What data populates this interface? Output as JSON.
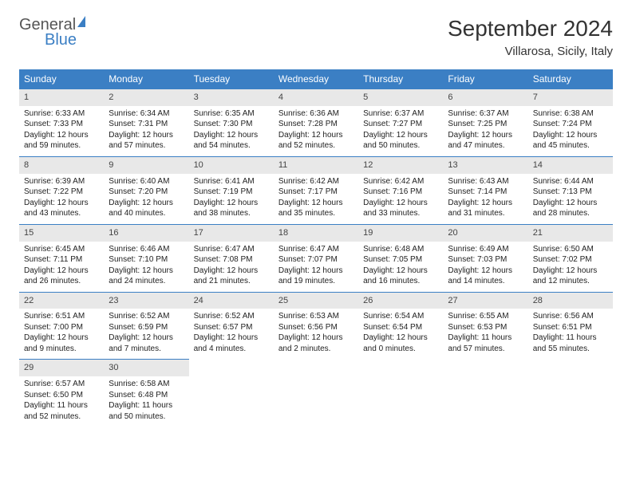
{
  "logo": {
    "general": "General",
    "blue": "Blue"
  },
  "header": {
    "month": "September 2024",
    "location": "Villarosa, Sicily, Italy"
  },
  "colors": {
    "header_bg": "#3b7fc4",
    "header_text": "#ffffff",
    "daynum_bg": "#e8e8e8",
    "daynum_border": "#3b7fc4",
    "body_text": "#222222",
    "page_bg": "#ffffff"
  },
  "weekdays": [
    "Sunday",
    "Monday",
    "Tuesday",
    "Wednesday",
    "Thursday",
    "Friday",
    "Saturday"
  ],
  "weeks": [
    [
      {
        "n": "1",
        "sr": "6:33 AM",
        "ss": "7:33 PM",
        "dl": "12 hours and 59 minutes."
      },
      {
        "n": "2",
        "sr": "6:34 AM",
        "ss": "7:31 PM",
        "dl": "12 hours and 57 minutes."
      },
      {
        "n": "3",
        "sr": "6:35 AM",
        "ss": "7:30 PM",
        "dl": "12 hours and 54 minutes."
      },
      {
        "n": "4",
        "sr": "6:36 AM",
        "ss": "7:28 PM",
        "dl": "12 hours and 52 minutes."
      },
      {
        "n": "5",
        "sr": "6:37 AM",
        "ss": "7:27 PM",
        "dl": "12 hours and 50 minutes."
      },
      {
        "n": "6",
        "sr": "6:37 AM",
        "ss": "7:25 PM",
        "dl": "12 hours and 47 minutes."
      },
      {
        "n": "7",
        "sr": "6:38 AM",
        "ss": "7:24 PM",
        "dl": "12 hours and 45 minutes."
      }
    ],
    [
      {
        "n": "8",
        "sr": "6:39 AM",
        "ss": "7:22 PM",
        "dl": "12 hours and 43 minutes."
      },
      {
        "n": "9",
        "sr": "6:40 AM",
        "ss": "7:20 PM",
        "dl": "12 hours and 40 minutes."
      },
      {
        "n": "10",
        "sr": "6:41 AM",
        "ss": "7:19 PM",
        "dl": "12 hours and 38 minutes."
      },
      {
        "n": "11",
        "sr": "6:42 AM",
        "ss": "7:17 PM",
        "dl": "12 hours and 35 minutes."
      },
      {
        "n": "12",
        "sr": "6:42 AM",
        "ss": "7:16 PM",
        "dl": "12 hours and 33 minutes."
      },
      {
        "n": "13",
        "sr": "6:43 AM",
        "ss": "7:14 PM",
        "dl": "12 hours and 31 minutes."
      },
      {
        "n": "14",
        "sr": "6:44 AM",
        "ss": "7:13 PM",
        "dl": "12 hours and 28 minutes."
      }
    ],
    [
      {
        "n": "15",
        "sr": "6:45 AM",
        "ss": "7:11 PM",
        "dl": "12 hours and 26 minutes."
      },
      {
        "n": "16",
        "sr": "6:46 AM",
        "ss": "7:10 PM",
        "dl": "12 hours and 24 minutes."
      },
      {
        "n": "17",
        "sr": "6:47 AM",
        "ss": "7:08 PM",
        "dl": "12 hours and 21 minutes."
      },
      {
        "n": "18",
        "sr": "6:47 AM",
        "ss": "7:07 PM",
        "dl": "12 hours and 19 minutes."
      },
      {
        "n": "19",
        "sr": "6:48 AM",
        "ss": "7:05 PM",
        "dl": "12 hours and 16 minutes."
      },
      {
        "n": "20",
        "sr": "6:49 AM",
        "ss": "7:03 PM",
        "dl": "12 hours and 14 minutes."
      },
      {
        "n": "21",
        "sr": "6:50 AM",
        "ss": "7:02 PM",
        "dl": "12 hours and 12 minutes."
      }
    ],
    [
      {
        "n": "22",
        "sr": "6:51 AM",
        "ss": "7:00 PM",
        "dl": "12 hours and 9 minutes."
      },
      {
        "n": "23",
        "sr": "6:52 AM",
        "ss": "6:59 PM",
        "dl": "12 hours and 7 minutes."
      },
      {
        "n": "24",
        "sr": "6:52 AM",
        "ss": "6:57 PM",
        "dl": "12 hours and 4 minutes."
      },
      {
        "n": "25",
        "sr": "6:53 AM",
        "ss": "6:56 PM",
        "dl": "12 hours and 2 minutes."
      },
      {
        "n": "26",
        "sr": "6:54 AM",
        "ss": "6:54 PM",
        "dl": "12 hours and 0 minutes."
      },
      {
        "n": "27",
        "sr": "6:55 AM",
        "ss": "6:53 PM",
        "dl": "11 hours and 57 minutes."
      },
      {
        "n": "28",
        "sr": "6:56 AM",
        "ss": "6:51 PM",
        "dl": "11 hours and 55 minutes."
      }
    ],
    [
      {
        "n": "29",
        "sr": "6:57 AM",
        "ss": "6:50 PM",
        "dl": "11 hours and 52 minutes."
      },
      {
        "n": "30",
        "sr": "6:58 AM",
        "ss": "6:48 PM",
        "dl": "11 hours and 50 minutes."
      },
      null,
      null,
      null,
      null,
      null
    ]
  ],
  "labels": {
    "sunrise": "Sunrise: ",
    "sunset": "Sunset: ",
    "daylight": "Daylight: "
  }
}
